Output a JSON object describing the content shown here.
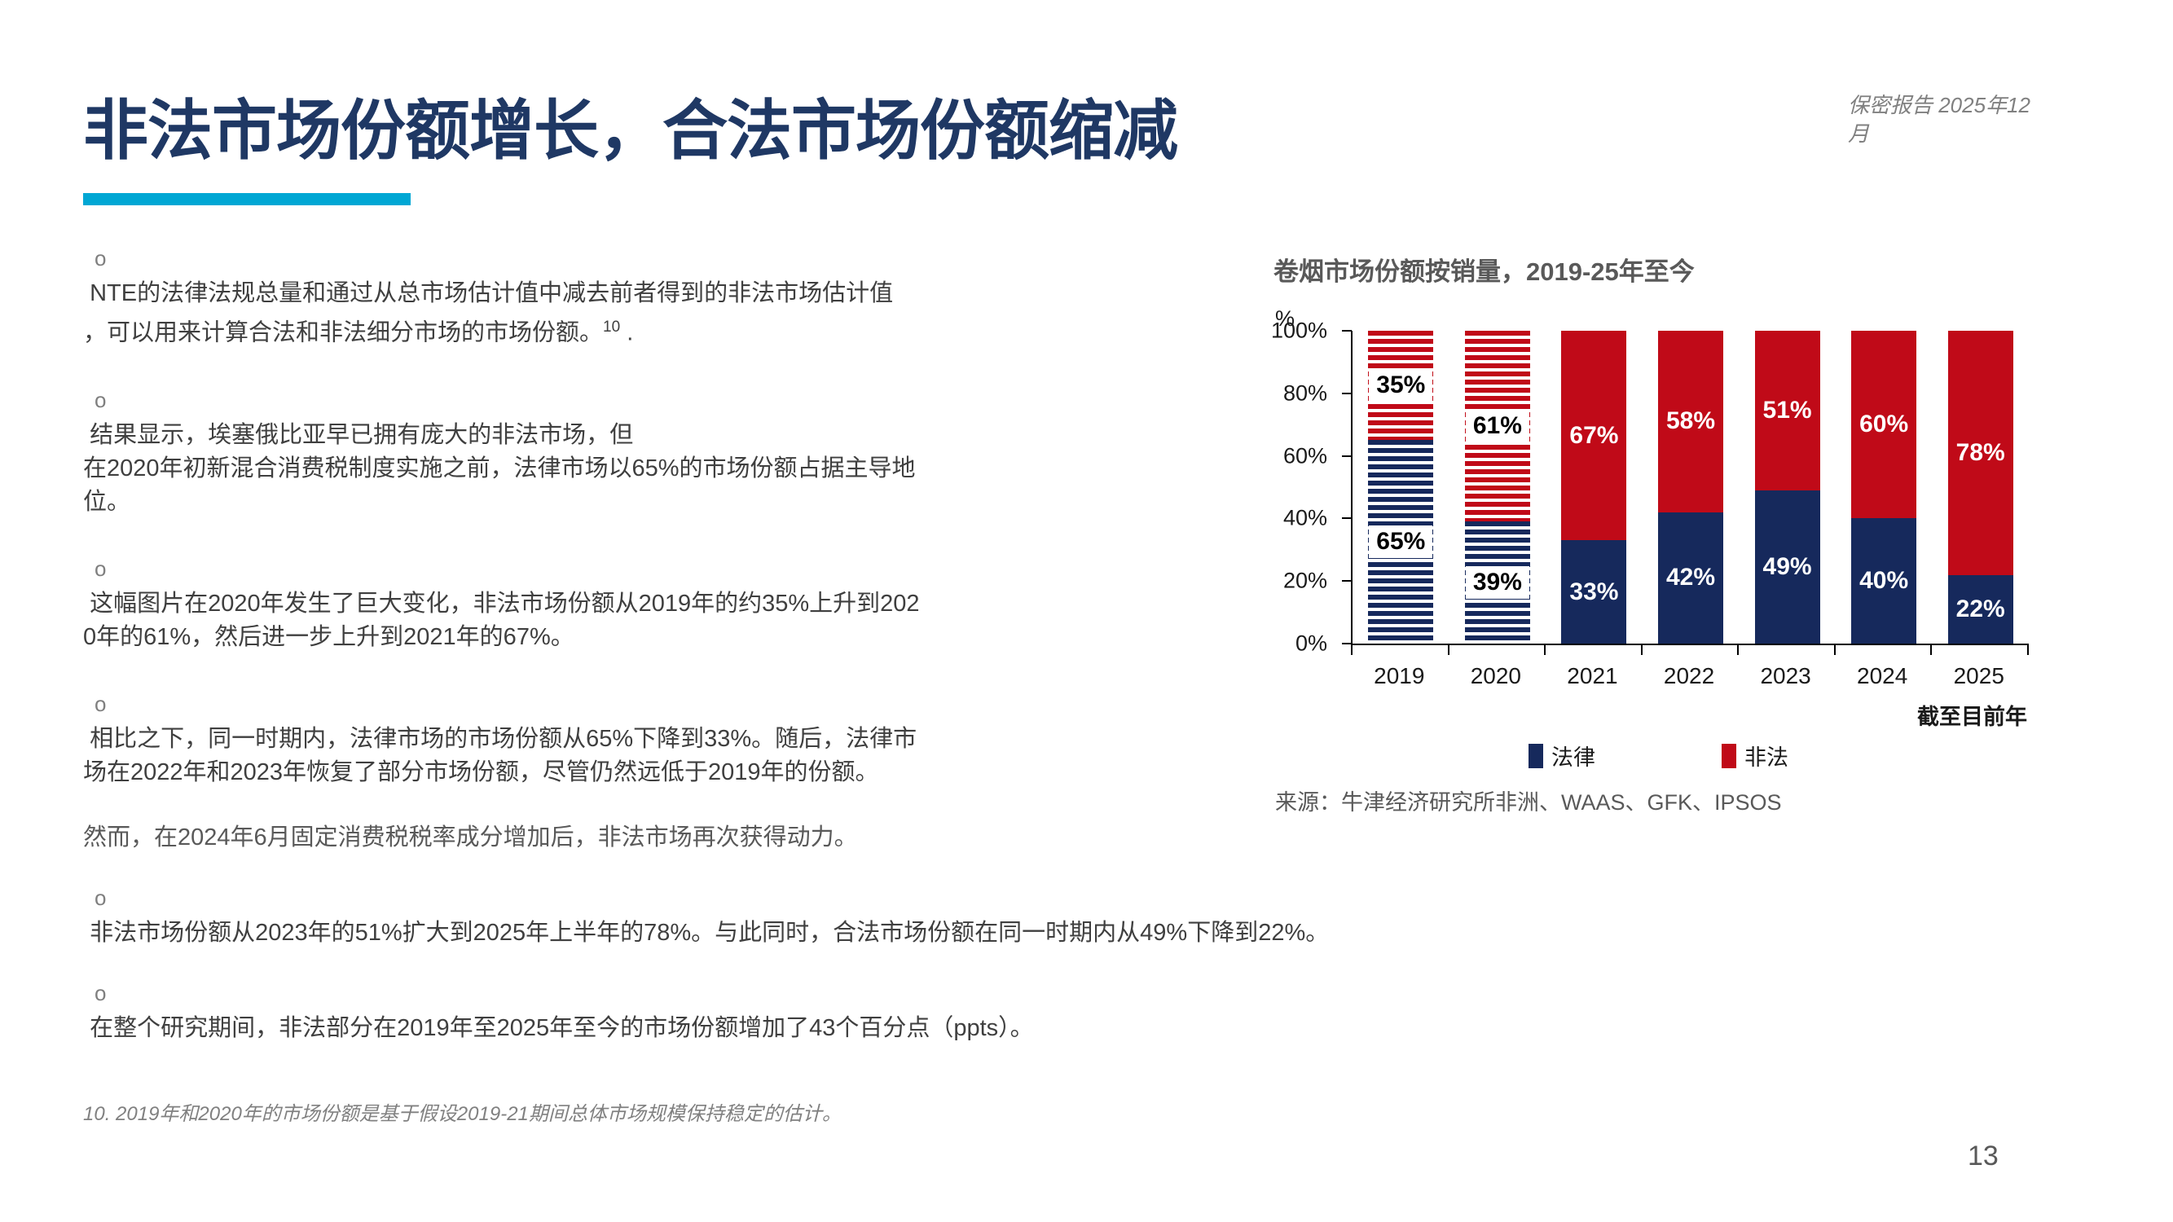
{
  "header": {
    "title": "非法市场份额增长，合法市场份额缩减",
    "confidential_note": "保密报告 2025年12月"
  },
  "accent_color": "#00A7D4",
  "bullet_marker": "o",
  "bullets": [
    {
      "line1": " NTE的法律法规总量和通过从总市场估计值中减去前者得到的非法市场估计值",
      "line2": "，可以用来计算合法和非法细分市场的市场份额。",
      "sup": "10",
      "tail": " ."
    },
    {
      "lines": [
        " 结果显示，埃塞俄比亚早已拥有庞大的非法市场，但",
        "在2020年初新混合消费税制度实施之前，法律市场以65%的市场份额占据主导地",
        "位。"
      ]
    },
    {
      "lines": [
        " 这幅图片在2020年发生了巨大变化，非法市场份额从2019年的约35%上升到202",
        "0年的61%，然后进一步上升到2021年的67%。"
      ]
    },
    {
      "lines": [
        " 相比之下，同一时期内，法律市场的市场份额从65%下降到33%。随后，法律市",
        "场在2022年和2023年恢复了部分市场份额，尽管仍然远低于2019年的份额。"
      ]
    }
  ],
  "paragraph": "然而，在2024年6月固定消费税税率成分增加后，非法市场再次获得动力。",
  "bottom_bullets": [
    {
      "lines": [
        " 非法市场份额从2023年的51%扩大到2025年上半年的78%。与此同时，合法市场份额在同一时期内从49%下降到22%。"
      ]
    },
    {
      "lines": [
        " 在整个研究期间，非法部分在2019年至2025年至今的市场份额增加了43个百分点（ppts）。"
      ]
    }
  ],
  "footnote": "10. 2019年和2020年的市场份额是基于假设2019-21期间总体市场规模保持稳定的估计。",
  "page_number": "13",
  "chart": {
    "title": "卷烟市场份额按销量，2019-25年至今",
    "unit_label": "%",
    "y_ticks": [
      "100%",
      "80%",
      "60%",
      "40%",
      "20%",
      "0%"
    ],
    "x_note": "截至目前年",
    "legend": [
      {
        "label": "法律",
        "color": "#16295C"
      },
      {
        "label": "非法",
        "color": "#C00A18"
      }
    ],
    "source": "来源：牛津经济研究所非洲、WAAS、GFK、IPSOS"
  },
  "chart_data": {
    "type": "bar",
    "stacked": true,
    "title": "卷烟市场份额按销量，2019-25年至今",
    "ylabel": "%",
    "ylim": [
      0,
      100
    ],
    "y_tick_step": 20,
    "legend_position": "bottom",
    "categories": [
      "2019",
      "2020",
      "2021",
      "2022",
      "2023",
      "2024",
      "2025"
    ],
    "series": [
      {
        "name": "法律",
        "color": "#16295C",
        "values": [
          65,
          39,
          33,
          42,
          49,
          40,
          22
        ],
        "labels": [
          "65%",
          "39%",
          "33%",
          "42%",
          "49%",
          "40%",
          "22%"
        ]
      },
      {
        "name": "非法",
        "color": "#C00A18",
        "values": [
          35,
          61,
          67,
          58,
          51,
          60,
          78
        ],
        "labels": [
          "35%",
          "61%",
          "67%",
          "58%",
          "51%",
          "60%",
          "78%"
        ]
      }
    ],
    "striped_estimate_categories": [
      "2019",
      "2020"
    ],
    "x_note": "截至目前年",
    "source": "来源：牛津经济研究所非洲、WAAS、GFK、IPSOS"
  }
}
